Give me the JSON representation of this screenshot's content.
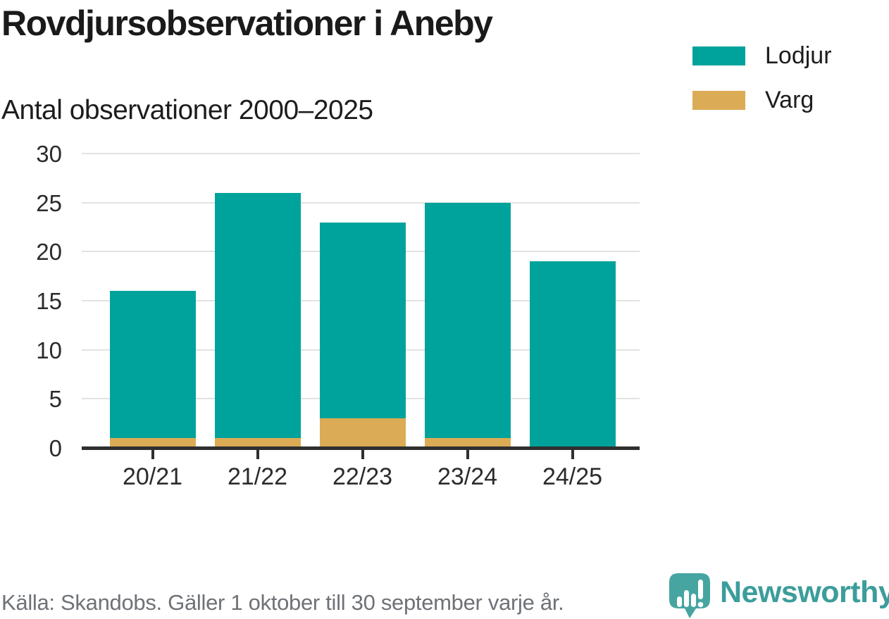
{
  "header": {
    "title": "Rovdjursobservationer i Aneby",
    "subtitle": "Antal observationer 2000–2025"
  },
  "chart_data": {
    "type": "bar",
    "stacked": true,
    "title": "Rovdjursobservationer i Aneby",
    "subtitle": "Antal observationer 2000–2025",
    "categories": [
      "20/21",
      "21/22",
      "22/23",
      "23/24",
      "24/25"
    ],
    "series": [
      {
        "name": "Varg",
        "color": "#dbab55",
        "values": [
          1,
          1,
          3,
          1,
          0
        ]
      },
      {
        "name": "Lodjur",
        "color": "#00a39b",
        "values": [
          15,
          25,
          20,
          24,
          19
        ]
      }
    ],
    "totals": [
      16,
      26,
      23,
      25,
      19
    ],
    "xlabel": "",
    "ylabel": "",
    "ylim": [
      0,
      30
    ],
    "yticks": [
      0,
      5,
      10,
      15,
      20,
      25,
      30
    ],
    "grid": "horizontal",
    "legend_position": "right"
  },
  "legend": {
    "items": [
      {
        "label": "Lodjur",
        "color": "#00a39b"
      },
      {
        "label": "Varg",
        "color": "#dbab55"
      }
    ]
  },
  "footer": {
    "source": "Källa: Skandobs. Gäller 1 oktober till 30 september varje år.",
    "brand": "Newsworthy"
  },
  "colors": {
    "lodjur": "#00a39b",
    "varg": "#dbab55",
    "axis": "#2f2f2f",
    "gridline": "#e2e2e2",
    "source_text": "#6e7277",
    "brand_teal": "#3c9d9b",
    "logo_bubble": "#46a5a1"
  }
}
